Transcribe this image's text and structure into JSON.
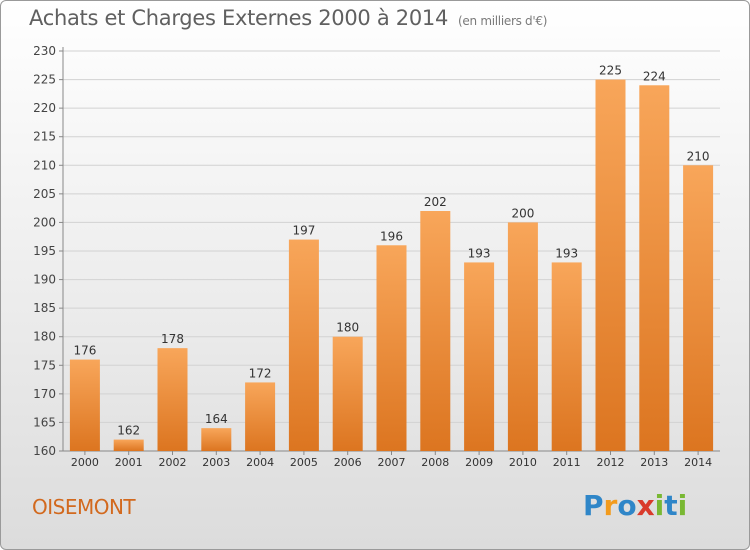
{
  "title": "Achats et Charges Externes 2000 à 2014",
  "unit_note": "(en milliers d'€)",
  "commune": "OISEMONT",
  "logo": {
    "letters": [
      "P",
      "r",
      "o",
      "x",
      "i",
      "t",
      "i"
    ],
    "colors": [
      "#2f86c8",
      "#f29b1d",
      "#2f86c8",
      "#d93a2b",
      "#79b833",
      "#2f86c8",
      "#79b833"
    ]
  },
  "chart_data": {
    "type": "bar",
    "categories": [
      "2000",
      "2001",
      "2002",
      "2003",
      "2004",
      "2005",
      "2006",
      "2007",
      "2008",
      "2009",
      "2010",
      "2011",
      "2012",
      "2013",
      "2014"
    ],
    "values": [
      176,
      162,
      178,
      164,
      172,
      197,
      180,
      196,
      202,
      193,
      200,
      193,
      225,
      224,
      210
    ],
    "title": "Achats et Charges Externes 2000 à 2014",
    "xlabel": "",
    "ylabel": "",
    "ylim": [
      160,
      230
    ],
    "yticks": [
      160,
      165,
      170,
      175,
      180,
      185,
      190,
      195,
      200,
      205,
      210,
      215,
      220,
      225,
      230
    ],
    "grid": true,
    "bar_color": "#f29a3e"
  }
}
